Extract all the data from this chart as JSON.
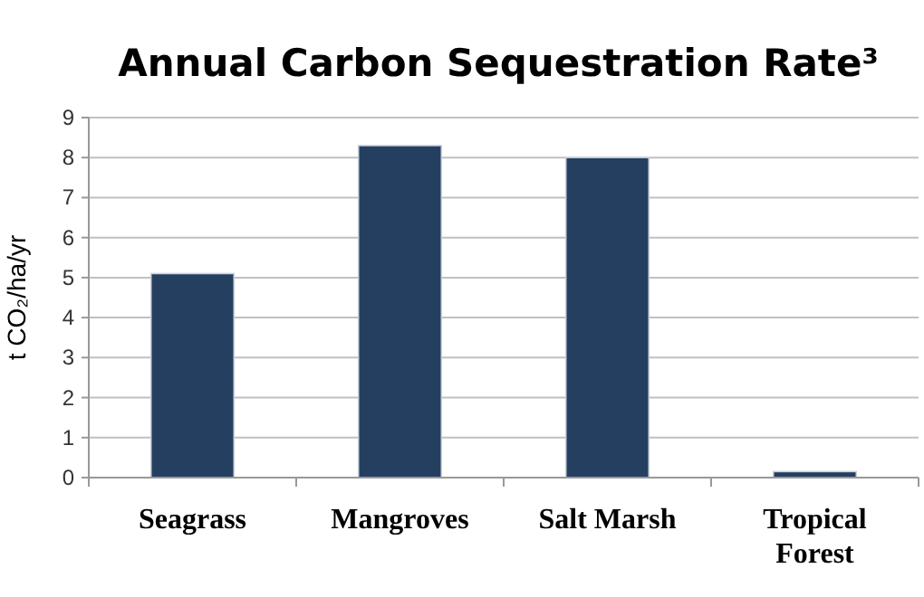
{
  "chart_data": {
    "type": "bar",
    "title": "Annual Carbon Sequestration Rate³",
    "ylabel": "t CO₂/ha/yr",
    "categories": [
      "Seagrass",
      "Mangroves",
      "Salt Marsh",
      "Tropical Forest"
    ],
    "values": [
      5.1,
      8.3,
      8.0,
      0.15
    ],
    "color": "#253f60",
    "ylim": [
      0,
      9
    ],
    "yticks": [
      0,
      1,
      2,
      3,
      4,
      5,
      6,
      7,
      8,
      9
    ],
    "grid": "y"
  }
}
